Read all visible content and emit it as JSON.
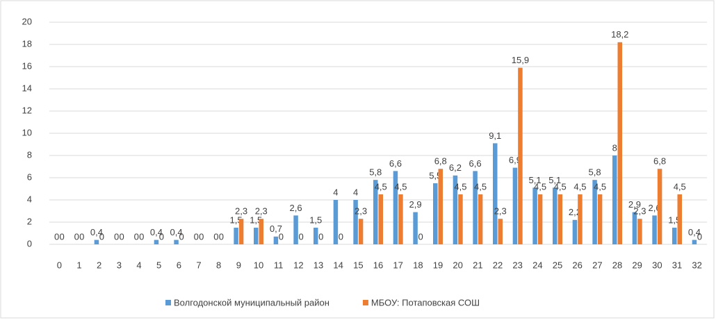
{
  "chart_data": {
    "type": "bar",
    "categories": [
      "0",
      "1",
      "2",
      "3",
      "4",
      "5",
      "6",
      "7",
      "8",
      "9",
      "10",
      "11",
      "12",
      "13",
      "14",
      "15",
      "16",
      "17",
      "18",
      "19",
      "20",
      "21",
      "22",
      "23",
      "24",
      "25",
      "26",
      "27",
      "28",
      "29",
      "30",
      "31",
      "32"
    ],
    "series": [
      {
        "name": "Волгодонской муниципальный район",
        "color": "#5b9bd5",
        "values": [
          0,
          0,
          0.4,
          0,
          0,
          0.4,
          0.4,
          0,
          0,
          1.5,
          1.5,
          0.7,
          2.6,
          1.5,
          4,
          4,
          5.8,
          6.6,
          2.9,
          5.5,
          6.2,
          6.6,
          9.1,
          6.9,
          5.1,
          5.1,
          2.2,
          5.8,
          8,
          2.9,
          2.6,
          1.5,
          0.4
        ],
        "value_labels": [
          "0",
          "0",
          "0,4",
          "0",
          "0",
          "0,4",
          "0,4",
          "0",
          "0",
          "1,5",
          "1,5",
          "0,7",
          "2,6",
          "1,5",
          "4",
          "4",
          "5,8",
          "6,6",
          "2,9",
          "5,5",
          "6,2",
          "6,6",
          "9,1",
          "6,9",
          "5,1",
          "5,1",
          "2,2",
          "5,8",
          "8",
          "2,9",
          "2,6",
          "1,5",
          "0,4"
        ]
      },
      {
        "name": "МБОУ: Потаповская СОШ",
        "color": "#ed7d31",
        "values": [
          0,
          0,
          0,
          0,
          0,
          0,
          0,
          0,
          0,
          2.3,
          2.3,
          0,
          0,
          0,
          0,
          2.3,
          4.5,
          4.5,
          0,
          6.8,
          4.5,
          4.5,
          2.3,
          15.9,
          4.5,
          4.5,
          4.5,
          4.5,
          18.2,
          2.3,
          6.8,
          4.5,
          0
        ],
        "value_labels": [
          "0",
          "0",
          "0",
          "0",
          "0",
          "0",
          "0",
          "0",
          "0",
          "2,3",
          "2,3",
          "0",
          "0",
          "0",
          "0",
          "2,3",
          "4,5",
          "4,5",
          "0",
          "6,8",
          "4,5",
          "4,5",
          "2,3",
          "15,9",
          "4,5",
          "4,5",
          "4,5",
          "4,5",
          "18,2",
          "2,3",
          "6,8",
          "4,5",
          "0"
        ]
      }
    ],
    "ylim": [
      0,
      20
    ],
    "yticks": [
      0,
      2,
      4,
      6,
      8,
      10,
      12,
      14,
      16,
      18,
      20
    ],
    "grid": true,
    "legend": "bottom"
  }
}
